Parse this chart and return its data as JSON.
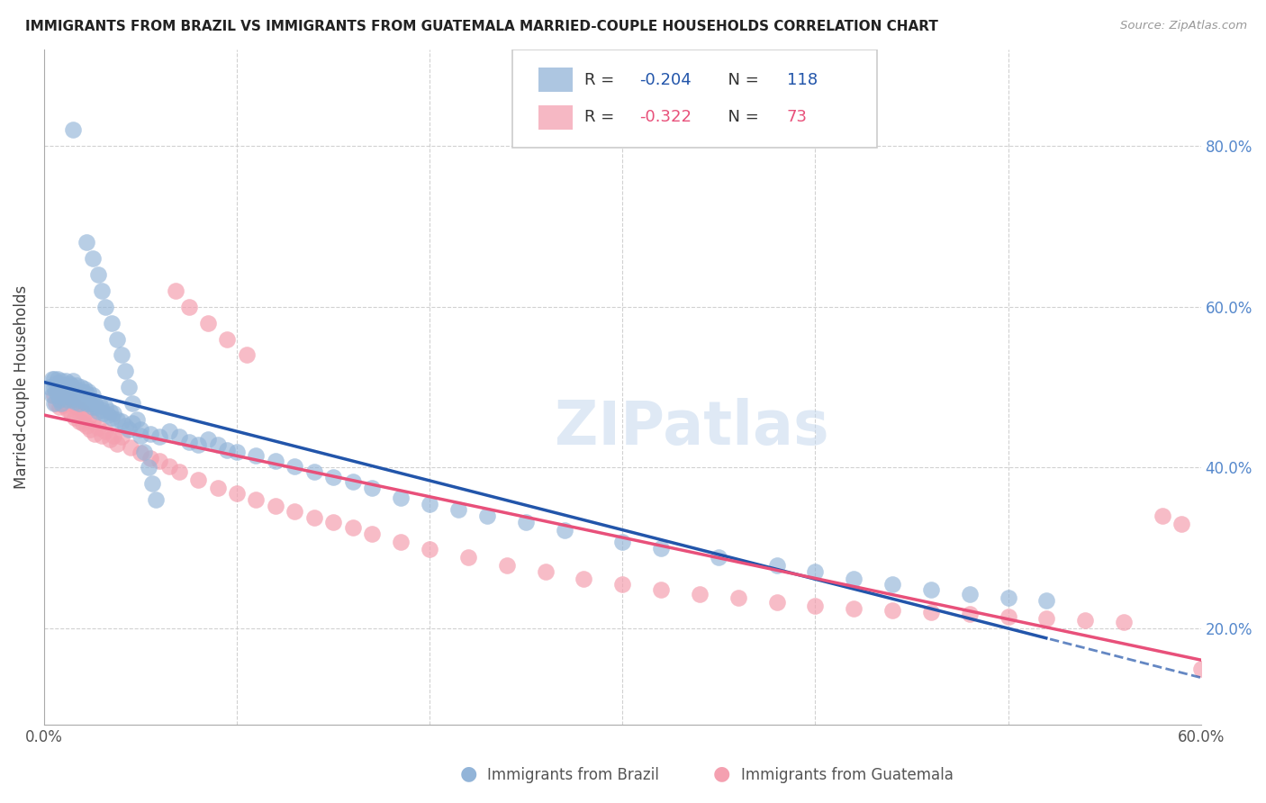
{
  "title": "IMMIGRANTS FROM BRAZIL VS IMMIGRANTS FROM GUATEMALA MARRIED-COUPLE HOUSEHOLDS CORRELATION CHART",
  "source": "Source: ZipAtlas.com",
  "ylabel": "Married-couple Households",
  "xlim": [
    0.0,
    0.6
  ],
  "ylim": [
    0.08,
    0.92
  ],
  "brazil_R": "-0.204",
  "brazil_N": "118",
  "guatemala_R": "-0.322",
  "guatemala_N": "73",
  "brazil_color": "#92B4D8",
  "guatemala_color": "#F4A0B0",
  "brazil_line_color": "#2255AA",
  "guatemala_line_color": "#E8507A",
  "watermark": "ZIPatlas",
  "watermark_color": "#C5D8EE",
  "brazil_x": [
    0.003,
    0.004,
    0.004,
    0.005,
    0.005,
    0.005,
    0.006,
    0.006,
    0.007,
    0.007,
    0.007,
    0.008,
    0.008,
    0.008,
    0.009,
    0.009,
    0.009,
    0.01,
    0.01,
    0.011,
    0.011,
    0.012,
    0.012,
    0.013,
    0.013,
    0.014,
    0.014,
    0.015,
    0.015,
    0.015,
    0.016,
    0.016,
    0.017,
    0.017,
    0.018,
    0.018,
    0.019,
    0.019,
    0.02,
    0.02,
    0.021,
    0.021,
    0.022,
    0.022,
    0.023,
    0.023,
    0.024,
    0.025,
    0.025,
    0.026,
    0.027,
    0.028,
    0.029,
    0.03,
    0.031,
    0.032,
    0.033,
    0.034,
    0.035,
    0.036,
    0.038,
    0.04,
    0.042,
    0.044,
    0.046,
    0.05,
    0.055,
    0.06,
    0.065,
    0.07,
    0.075,
    0.08,
    0.085,
    0.09,
    0.095,
    0.1,
    0.11,
    0.12,
    0.13,
    0.14,
    0.15,
    0.16,
    0.17,
    0.185,
    0.2,
    0.215,
    0.23,
    0.25,
    0.27,
    0.3,
    0.32,
    0.35,
    0.38,
    0.4,
    0.42,
    0.44,
    0.46,
    0.48,
    0.5,
    0.52,
    0.015,
    0.022,
    0.025,
    0.028,
    0.03,
    0.032,
    0.035,
    0.038,
    0.04,
    0.042,
    0.044,
    0.046,
    0.048,
    0.05,
    0.052,
    0.054,
    0.056,
    0.058
  ],
  "brazil_y": [
    0.5,
    0.49,
    0.51,
    0.48,
    0.5,
    0.51,
    0.495,
    0.505,
    0.49,
    0.5,
    0.51,
    0.485,
    0.495,
    0.505,
    0.48,
    0.492,
    0.508,
    0.488,
    0.502,
    0.492,
    0.508,
    0.485,
    0.498,
    0.49,
    0.505,
    0.488,
    0.502,
    0.485,
    0.495,
    0.508,
    0.482,
    0.498,
    0.488,
    0.502,
    0.48,
    0.495,
    0.488,
    0.5,
    0.482,
    0.495,
    0.485,
    0.498,
    0.48,
    0.492,
    0.482,
    0.495,
    0.48,
    0.475,
    0.49,
    0.48,
    0.475,
    0.47,
    0.478,
    0.472,
    0.468,
    0.475,
    0.465,
    0.47,
    0.462,
    0.468,
    0.46,
    0.458,
    0.452,
    0.448,
    0.455,
    0.448,
    0.442,
    0.438,
    0.445,
    0.438,
    0.432,
    0.428,
    0.435,
    0.428,
    0.422,
    0.42,
    0.415,
    0.408,
    0.402,
    0.395,
    0.388,
    0.382,
    0.375,
    0.362,
    0.355,
    0.348,
    0.34,
    0.332,
    0.322,
    0.308,
    0.3,
    0.288,
    0.278,
    0.27,
    0.262,
    0.255,
    0.248,
    0.242,
    0.238,
    0.235,
    0.82,
    0.68,
    0.66,
    0.64,
    0.62,
    0.6,
    0.58,
    0.56,
    0.54,
    0.52,
    0.5,
    0.48,
    0.46,
    0.44,
    0.42,
    0.4,
    0.38,
    0.36
  ],
  "guatemala_x": [
    0.005,
    0.006,
    0.007,
    0.008,
    0.009,
    0.01,
    0.011,
    0.012,
    0.013,
    0.014,
    0.015,
    0.016,
    0.017,
    0.018,
    0.019,
    0.02,
    0.021,
    0.022,
    0.023,
    0.024,
    0.025,
    0.026,
    0.028,
    0.03,
    0.032,
    0.034,
    0.036,
    0.038,
    0.04,
    0.045,
    0.05,
    0.055,
    0.06,
    0.065,
    0.07,
    0.08,
    0.09,
    0.1,
    0.11,
    0.12,
    0.13,
    0.14,
    0.15,
    0.16,
    0.17,
    0.185,
    0.2,
    0.22,
    0.24,
    0.26,
    0.28,
    0.3,
    0.32,
    0.34,
    0.36,
    0.38,
    0.4,
    0.42,
    0.44,
    0.46,
    0.48,
    0.5,
    0.52,
    0.54,
    0.56,
    0.068,
    0.075,
    0.085,
    0.095,
    0.105,
    0.58,
    0.59,
    0.6
  ],
  "guatemala_y": [
    0.49,
    0.48,
    0.495,
    0.475,
    0.488,
    0.478,
    0.492,
    0.472,
    0.485,
    0.468,
    0.48,
    0.462,
    0.475,
    0.458,
    0.472,
    0.455,
    0.468,
    0.452,
    0.462,
    0.448,
    0.458,
    0.442,
    0.45,
    0.44,
    0.445,
    0.435,
    0.44,
    0.43,
    0.438,
    0.425,
    0.418,
    0.412,
    0.408,
    0.402,
    0.395,
    0.385,
    0.375,
    0.368,
    0.36,
    0.352,
    0.345,
    0.338,
    0.332,
    0.325,
    0.318,
    0.308,
    0.298,
    0.288,
    0.278,
    0.27,
    0.262,
    0.255,
    0.248,
    0.242,
    0.238,
    0.232,
    0.228,
    0.225,
    0.222,
    0.22,
    0.218,
    0.215,
    0.212,
    0.21,
    0.208,
    0.62,
    0.6,
    0.58,
    0.56,
    0.54,
    0.34,
    0.33,
    0.15
  ]
}
